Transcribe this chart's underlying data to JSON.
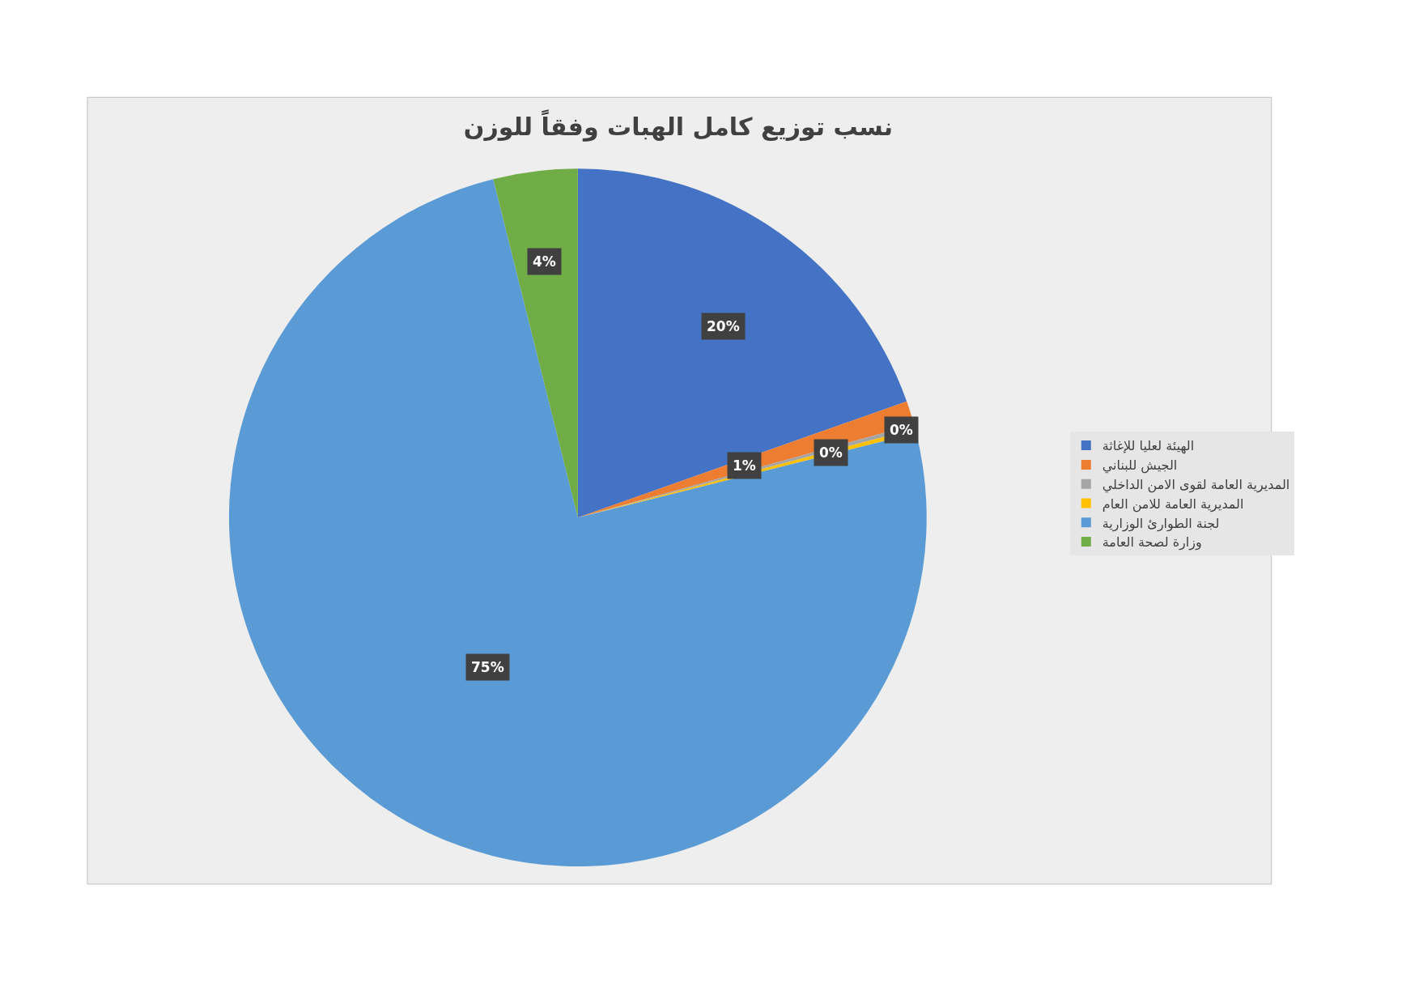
{
  "chart_data": {
    "type": "pie",
    "title": "نسب توزيع كامل الهبات وفقاً للوزن",
    "categories": [
      "الهيئة لعليا للإغاثة",
      "الجيش للبناني",
      "المديرية العامة لقوى الامن الداخلي",
      "المديرية العامة للامن العام",
      "لجنة الطوارئ الوزارية",
      "وزارة لصحة العامة"
    ],
    "values": [
      19.6,
      1.1,
      0.2,
      0.2,
      75.0,
      3.9
    ],
    "colors": [
      "#4472c4",
      "#ed7d31",
      "#a5a5a5",
      "#ffc000",
      "#5b9bd5",
      "#70ad47"
    ],
    "value_labels": [
      "20%",
      "1%",
      "0%",
      "0%",
      "75%",
      "4%"
    ],
    "legend": "right"
  }
}
